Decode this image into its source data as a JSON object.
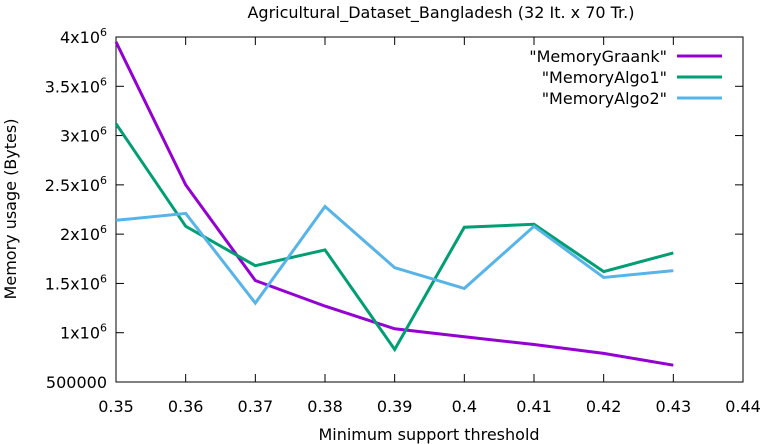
{
  "chart_data": {
    "type": "line",
    "title": "Agricultural_Dataset_Bangladesh (32 It. x  70 Tr.)",
    "xlabel": "Minimum support threshold",
    "ylabel": "Memory usage (Bytes)",
    "xlim": [
      0.35,
      0.44
    ],
    "ylim": [
      500000,
      4000000
    ],
    "x_ticks": [
      {
        "value": 0.35,
        "label": "0.35"
      },
      {
        "value": 0.36,
        "label": "0.36"
      },
      {
        "value": 0.37,
        "label": "0.37"
      },
      {
        "value": 0.38,
        "label": "0.38"
      },
      {
        "value": 0.39,
        "label": "0.39"
      },
      {
        "value": 0.4,
        "label": "0.4"
      },
      {
        "value": 0.41,
        "label": "0.41"
      },
      {
        "value": 0.42,
        "label": "0.42"
      },
      {
        "value": 0.43,
        "label": "0.43"
      },
      {
        "value": 0.44,
        "label": "0.44"
      }
    ],
    "y_ticks": [
      {
        "value": 500000,
        "base": "500000",
        "exp": ""
      },
      {
        "value": 1000000,
        "base": "1x10",
        "exp": "6"
      },
      {
        "value": 1500000,
        "base": "1.5x10",
        "exp": "6"
      },
      {
        "value": 2000000,
        "base": "2x10",
        "exp": "6"
      },
      {
        "value": 2500000,
        "base": "2.5x10",
        "exp": "6"
      },
      {
        "value": 3000000,
        "base": "3x10",
        "exp": "6"
      },
      {
        "value": 3500000,
        "base": "3.5x10",
        "exp": "6"
      },
      {
        "value": 4000000,
        "base": "4x10",
        "exp": "6"
      }
    ],
    "grid": false,
    "legend_position": "top-right",
    "x": [
      0.35,
      0.36,
      0.37,
      0.38,
      0.39,
      0.4,
      0.41,
      0.42,
      0.43
    ],
    "series": [
      {
        "name": "\"MemoryGraank\"",
        "color": "#9400d3",
        "values": [
          3950000,
          2500000,
          1530000,
          1270000,
          1040000,
          960000,
          880000,
          790000,
          670000
        ]
      },
      {
        "name": "\"MemoryAlgo1\"",
        "color": "#009e73",
        "values": [
          3120000,
          2080000,
          1680000,
          1840000,
          830000,
          2070000,
          2100000,
          1620000,
          1810000
        ]
      },
      {
        "name": "\"MemoryAlgo2\"",
        "color": "#56b4e9",
        "values": [
          2140000,
          2210000,
          1300000,
          2280000,
          1660000,
          1450000,
          2080000,
          1560000,
          1630000
        ]
      }
    ]
  }
}
